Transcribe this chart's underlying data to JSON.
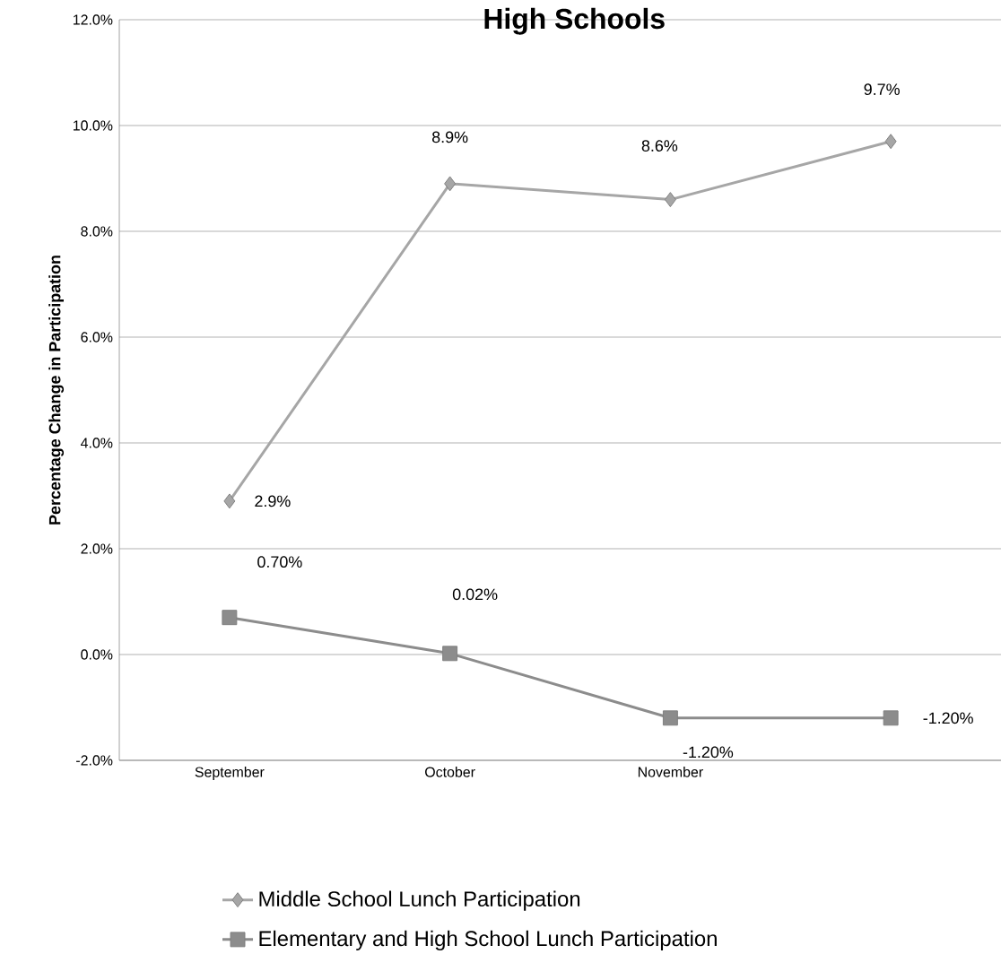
{
  "chart_data": {
    "type": "line",
    "title": "High Schools",
    "ylabel": "Percentage Change in Participation",
    "categories": [
      "September",
      "October",
      "November",
      null
    ],
    "series": [
      {
        "name": "Middle School Lunch Participation",
        "color": "#a6a6a6",
        "marker": "diamond",
        "values": [
          2.9,
          8.9,
          8.6,
          9.7
        ],
        "value_labels": [
          "2.9%",
          "8.9%",
          "8.6%",
          "9.7%"
        ]
      },
      {
        "name": "Elementary and High School Lunch Participation",
        "color": "#8c8c8c",
        "marker": "square",
        "values": [
          0.7,
          0.02,
          -1.2,
          -1.2
        ],
        "value_labels": [
          "0.70%",
          "0.02%",
          "-1.20%",
          "-1.20%"
        ]
      }
    ],
    "ylim": [
      -2,
      12
    ],
    "yticks": [
      {
        "value": -2,
        "label": "-2.0%"
      },
      {
        "value": 0,
        "label": "0.0%"
      },
      {
        "value": 2,
        "label": "2.0%"
      },
      {
        "value": 4,
        "label": "4.0%"
      },
      {
        "value": 6,
        "label": "6.0%"
      },
      {
        "value": 8,
        "label": "8.0%"
      },
      {
        "value": 10,
        "label": "10.0%"
      },
      {
        "value": 12,
        "label": "12.0%"
      }
    ],
    "grid": "y",
    "legend": "bottom",
    "line_style": "solid"
  }
}
